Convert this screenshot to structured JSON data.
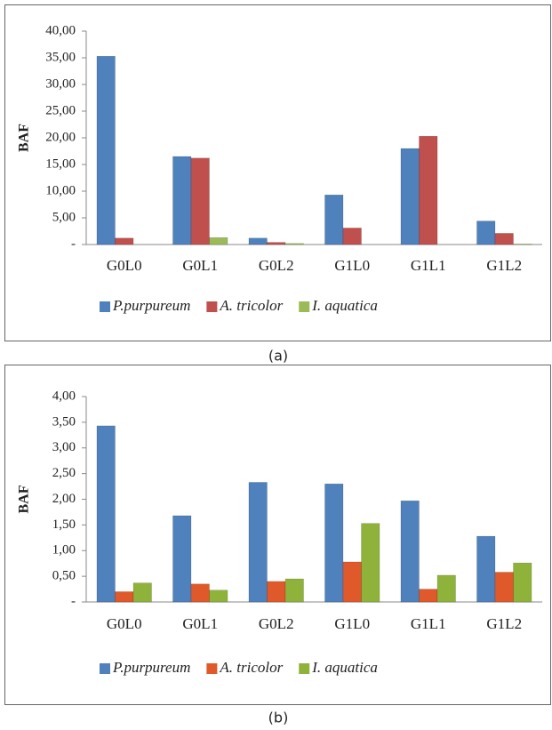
{
  "chart_data": [
    {
      "type": "bar",
      "caption": "(a)",
      "y_label": "BAF",
      "categories": [
        "G0L0",
        "G0L1",
        "G0L2",
        "G1L0",
        "G1L1",
        "G1L2"
      ],
      "series": [
        {
          "name": "P.purpureum",
          "color": "#4f81bd",
          "values": [
            35.3,
            16.5,
            1.2,
            9.3,
            18.0,
            4.4
          ]
        },
        {
          "name": "A. tricolor",
          "color": "#c0504d",
          "values": [
            1.2,
            16.2,
            0.4,
            3.1,
            20.3,
            2.1
          ]
        },
        {
          "name": "I. aquatica",
          "color": "#9bbb59",
          "values": [
            0,
            1.3,
            0.2,
            0,
            0,
            0.1
          ]
        }
      ],
      "ylim": [
        0,
        40
      ],
      "yticks": [
        {
          "value": 0,
          "label": "-"
        },
        {
          "value": 5,
          "label": "5,00"
        },
        {
          "value": 10,
          "label": "10,00"
        },
        {
          "value": 15,
          "label": "15,00"
        },
        {
          "value": 20,
          "label": "20,00"
        },
        {
          "value": 25,
          "label": "25,00"
        },
        {
          "value": 30,
          "label": "30,00"
        },
        {
          "value": 35,
          "label": "35,00"
        },
        {
          "value": 40,
          "label": "40,00"
        }
      ],
      "grid": false,
      "legend": "bottom"
    },
    {
      "type": "bar",
      "caption": "(b)",
      "y_label": "BAF",
      "categories": [
        "G0L0",
        "G0L1",
        "G0L2",
        "G1L0",
        "G1L1",
        "G1L2"
      ],
      "series": [
        {
          "name": "P.purpureum",
          "color": "#4f81bd",
          "values": [
            3.43,
            1.68,
            2.33,
            2.3,
            1.97,
            1.28
          ]
        },
        {
          "name": "A. tricolor",
          "color": "#e0592a",
          "values": [
            0.2,
            0.35,
            0.4,
            0.78,
            0.25,
            0.58
          ]
        },
        {
          "name": "I. aquatica",
          "color": "#8fb33a",
          "values": [
            0.37,
            0.23,
            0.45,
            1.53,
            0.52,
            0.76
          ]
        }
      ],
      "ylim": [
        0,
        4
      ],
      "yticks": [
        {
          "value": 0,
          "label": "-"
        },
        {
          "value": 0.5,
          "label": "0,50"
        },
        {
          "value": 1,
          "label": "1,00"
        },
        {
          "value": 1.5,
          "label": "1,50"
        },
        {
          "value": 2,
          "label": "2,00"
        },
        {
          "value": 2.5,
          "label": "2,50"
        },
        {
          "value": 3,
          "label": "3,00"
        },
        {
          "value": 3.5,
          "label": "3,50"
        },
        {
          "value": 4,
          "label": "4,00"
        }
      ],
      "grid": false,
      "legend": "bottom"
    }
  ]
}
